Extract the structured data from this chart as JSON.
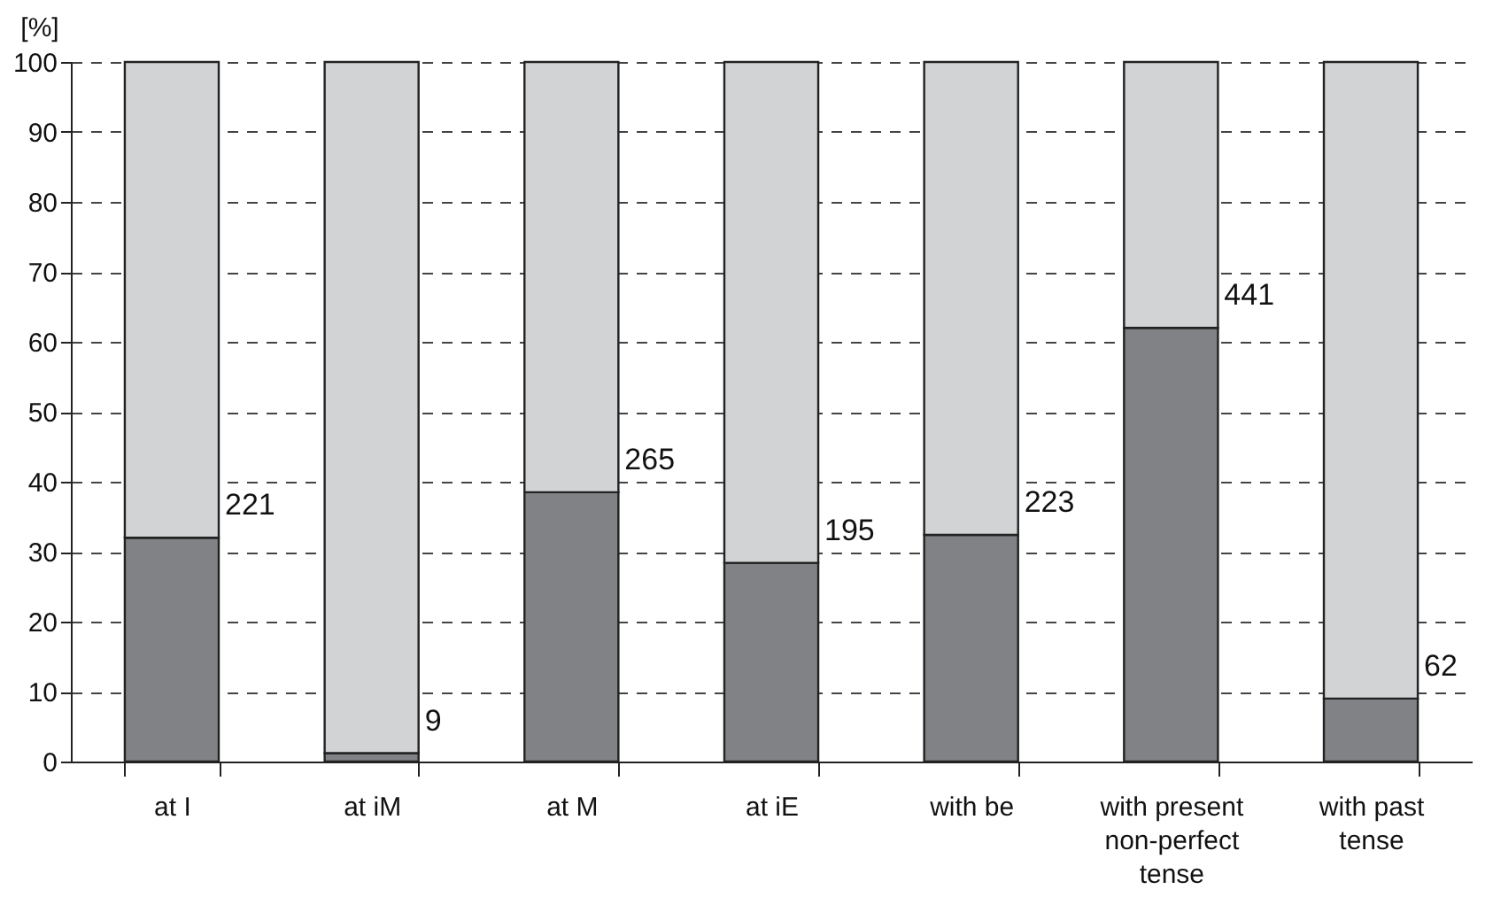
{
  "chart_data": {
    "type": "bar",
    "stacked": true,
    "ylabel": "[%]",
    "categories": [
      "at I",
      "at iM",
      "at M",
      "at iE",
      "with be",
      "with present non-perfect tense",
      "with past tense"
    ],
    "series": [
      {
        "color": "#808285",
        "values": [
          32,
          1.2,
          38.5,
          28.4,
          32.4,
          62,
          9
        ]
      },
      {
        "color": "#d1d3d4",
        "values": [
          68,
          98.8,
          61.5,
          71.6,
          67.6,
          38,
          91
        ]
      }
    ],
    "ylim": [
      0,
      100
    ],
    "yticks": [
      0,
      10,
      20,
      30,
      40,
      50,
      60,
      70,
      80,
      90,
      100
    ],
    "grid": "y",
    "legend": false,
    "annotations": [
      {
        "text": "221",
        "x": "at I",
        "y": 32
      },
      {
        "text": "9",
        "x": "at iM",
        "y": 1.2
      },
      {
        "text": "265",
        "x": "at M",
        "y": 38.5
      },
      {
        "text": "195",
        "x": "at iE",
        "y": 28.4
      },
      {
        "text": "223",
        "x": "with be",
        "y": 32.4
      },
      {
        "text": "441",
        "x": "with present non-perfect tense",
        "y": 62
      },
      {
        "text": "62",
        "x": "with past tense",
        "y": 9
      }
    ]
  }
}
